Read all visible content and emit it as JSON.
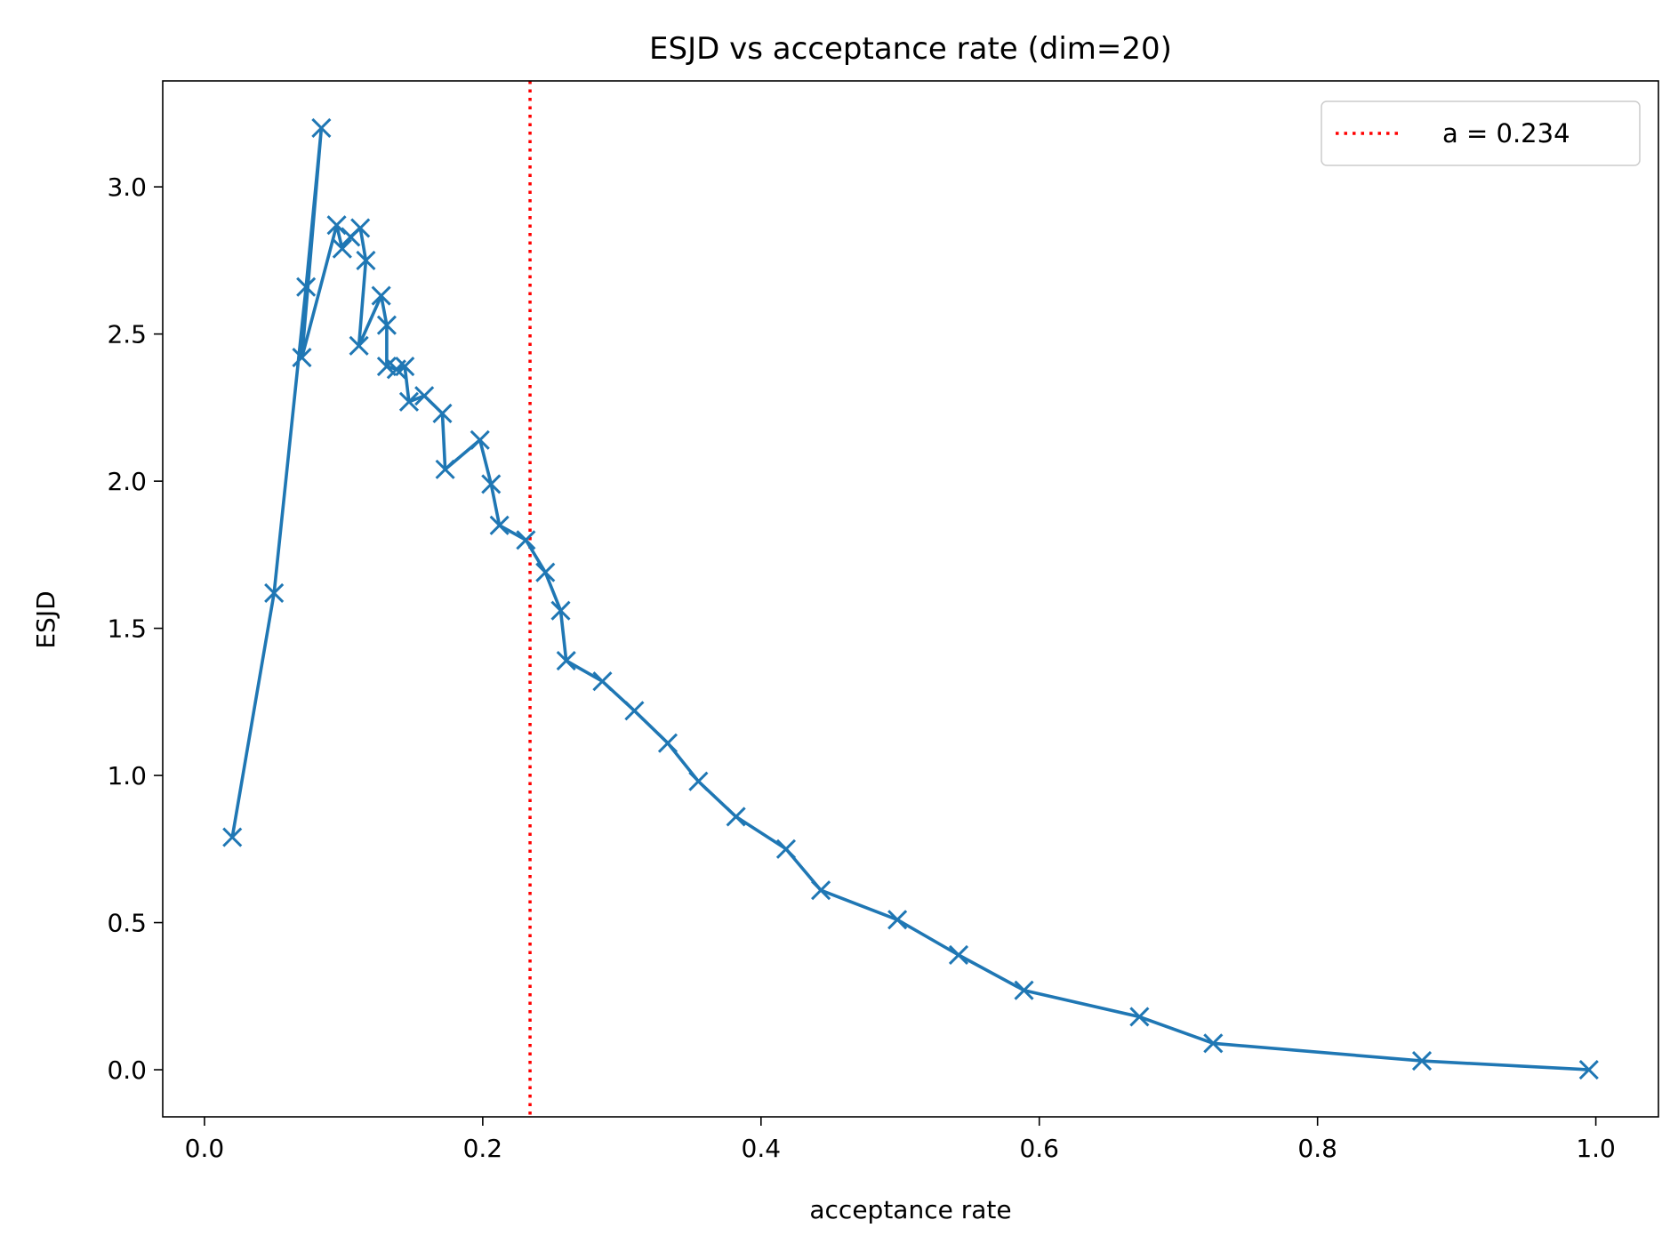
{
  "chart_data": {
    "type": "line",
    "title": "ESJD vs acceptance rate (dim=20)",
    "xlabel": "acceptance rate",
    "ylabel": "ESJD",
    "xlim": [
      -0.03,
      1.045
    ],
    "ylim": [
      -0.16,
      3.36
    ],
    "xticks": [
      0.0,
      0.2,
      0.4,
      0.6,
      0.8,
      1.0
    ],
    "xtick_labels": [
      "0.0",
      "0.2",
      "0.4",
      "0.6",
      "0.8",
      "1.0"
    ],
    "yticks": [
      0.0,
      0.5,
      1.0,
      1.5,
      2.0,
      2.5,
      3.0
    ],
    "ytick_labels": [
      "0.0",
      "0.5",
      "1.0",
      "1.5",
      "2.0",
      "2.5",
      "3.0"
    ],
    "grid": false,
    "legend_position": "top-right",
    "series": [
      {
        "name": "ESJD",
        "color": "#1f77b4",
        "marker": "x",
        "x": [
          0.02,
          0.05,
          0.073,
          0.084,
          0.07,
          0.095,
          0.099,
          0.105,
          0.112,
          0.116,
          0.111,
          0.127,
          0.131,
          0.131,
          0.138,
          0.144,
          0.147,
          0.158,
          0.171,
          0.173,
          0.198,
          0.206,
          0.212,
          0.231,
          0.245,
          0.256,
          0.26,
          0.286,
          0.309,
          0.333,
          0.355,
          0.382,
          0.418,
          0.443,
          0.498,
          0.542,
          0.589,
          0.672,
          0.725,
          0.875,
          0.995
        ],
        "y": [
          0.79,
          1.62,
          2.66,
          3.2,
          2.42,
          2.87,
          2.79,
          2.83,
          2.86,
          2.75,
          2.46,
          2.63,
          2.53,
          2.39,
          2.38,
          2.39,
          2.27,
          2.29,
          2.23,
          2.04,
          2.14,
          1.99,
          1.85,
          1.8,
          1.69,
          1.56,
          1.39,
          1.32,
          1.22,
          1.11,
          0.98,
          0.86,
          0.75,
          0.61,
          0.51,
          0.39,
          0.27,
          0.18,
          0.09,
          0.03,
          0.0
        ]
      }
    ],
    "reference_line": {
      "label": "a = 0.234",
      "x": 0.234,
      "color": "#ff0000",
      "style": "dotted"
    }
  }
}
